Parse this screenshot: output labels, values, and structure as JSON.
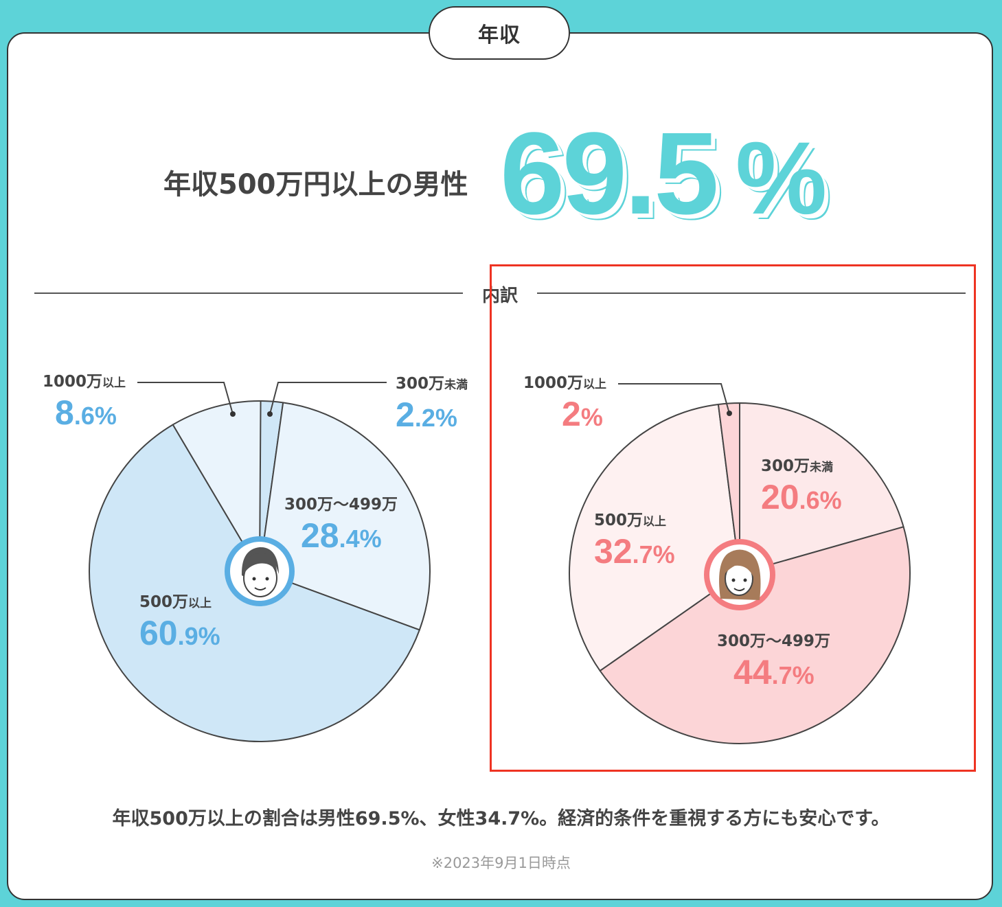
{
  "section_title": "年収",
  "headline": {
    "label": "年収500万円以上の男性",
    "value_int": "69",
    "value_dec": ".5",
    "unit": "%"
  },
  "divider_label": "内訳",
  "summary": "年収500万以上の割合は男性69.5%、女性34.7%。経済的条件を重視する方にも安心です。",
  "note": "※2023年9月1日時点",
  "colors": {
    "accent": "#5dd3d8",
    "male_text": "#5aaee3",
    "female_text": "#f47c80",
    "highlight": "#ee3322"
  },
  "icons": {
    "male": "man-face-icon",
    "female": "woman-face-icon"
  },
  "chart_data": [
    {
      "type": "pie",
      "name": "male",
      "slices": [
        {
          "label": "300万未満",
          "label_main": "300万",
          "label_sub": "未満",
          "value": 2.2,
          "int": "2",
          "dec": ".2",
          "unit": "%",
          "color": "#cfe7f7"
        },
        {
          "label": "300万〜499万",
          "label_main": "300万〜499万",
          "label_sub": "",
          "value": 28.4,
          "int": "28",
          "dec": ".4",
          "unit": "%",
          "color": "#eaf4fc"
        },
        {
          "label": "500万以上",
          "label_main": "500万",
          "label_sub": "以上",
          "value": 60.9,
          "int": "60",
          "dec": ".9",
          "unit": "%",
          "color": "#cfe7f7"
        },
        {
          "label": "1000万以上",
          "label_main": "1000万",
          "label_sub": "以上",
          "value": 8.6,
          "int": "8",
          "dec": ".6",
          "unit": "%",
          "color": "#eaf4fc"
        }
      ]
    },
    {
      "type": "pie",
      "name": "female",
      "slices": [
        {
          "label": "300万未満",
          "label_main": "300万",
          "label_sub": "未満",
          "value": 20.6,
          "int": "20",
          "dec": ".6",
          "unit": "%",
          "color": "#fde9ea"
        },
        {
          "label": "300万〜499万",
          "label_main": "300万〜499万",
          "label_sub": "",
          "value": 44.7,
          "int": "44",
          "dec": ".7",
          "unit": "%",
          "color": "#fcd5d7"
        },
        {
          "label": "500万以上",
          "label_main": "500万",
          "label_sub": "以上",
          "value": 32.7,
          "int": "32",
          "dec": ".7",
          "unit": "%",
          "color": "#fef1f1"
        },
        {
          "label": "1000万以上",
          "label_main": "1000万",
          "label_sub": "以上",
          "value": 2,
          "int": "2",
          "dec": "",
          "unit": "%",
          "color": "#fcd5d7"
        }
      ]
    }
  ]
}
